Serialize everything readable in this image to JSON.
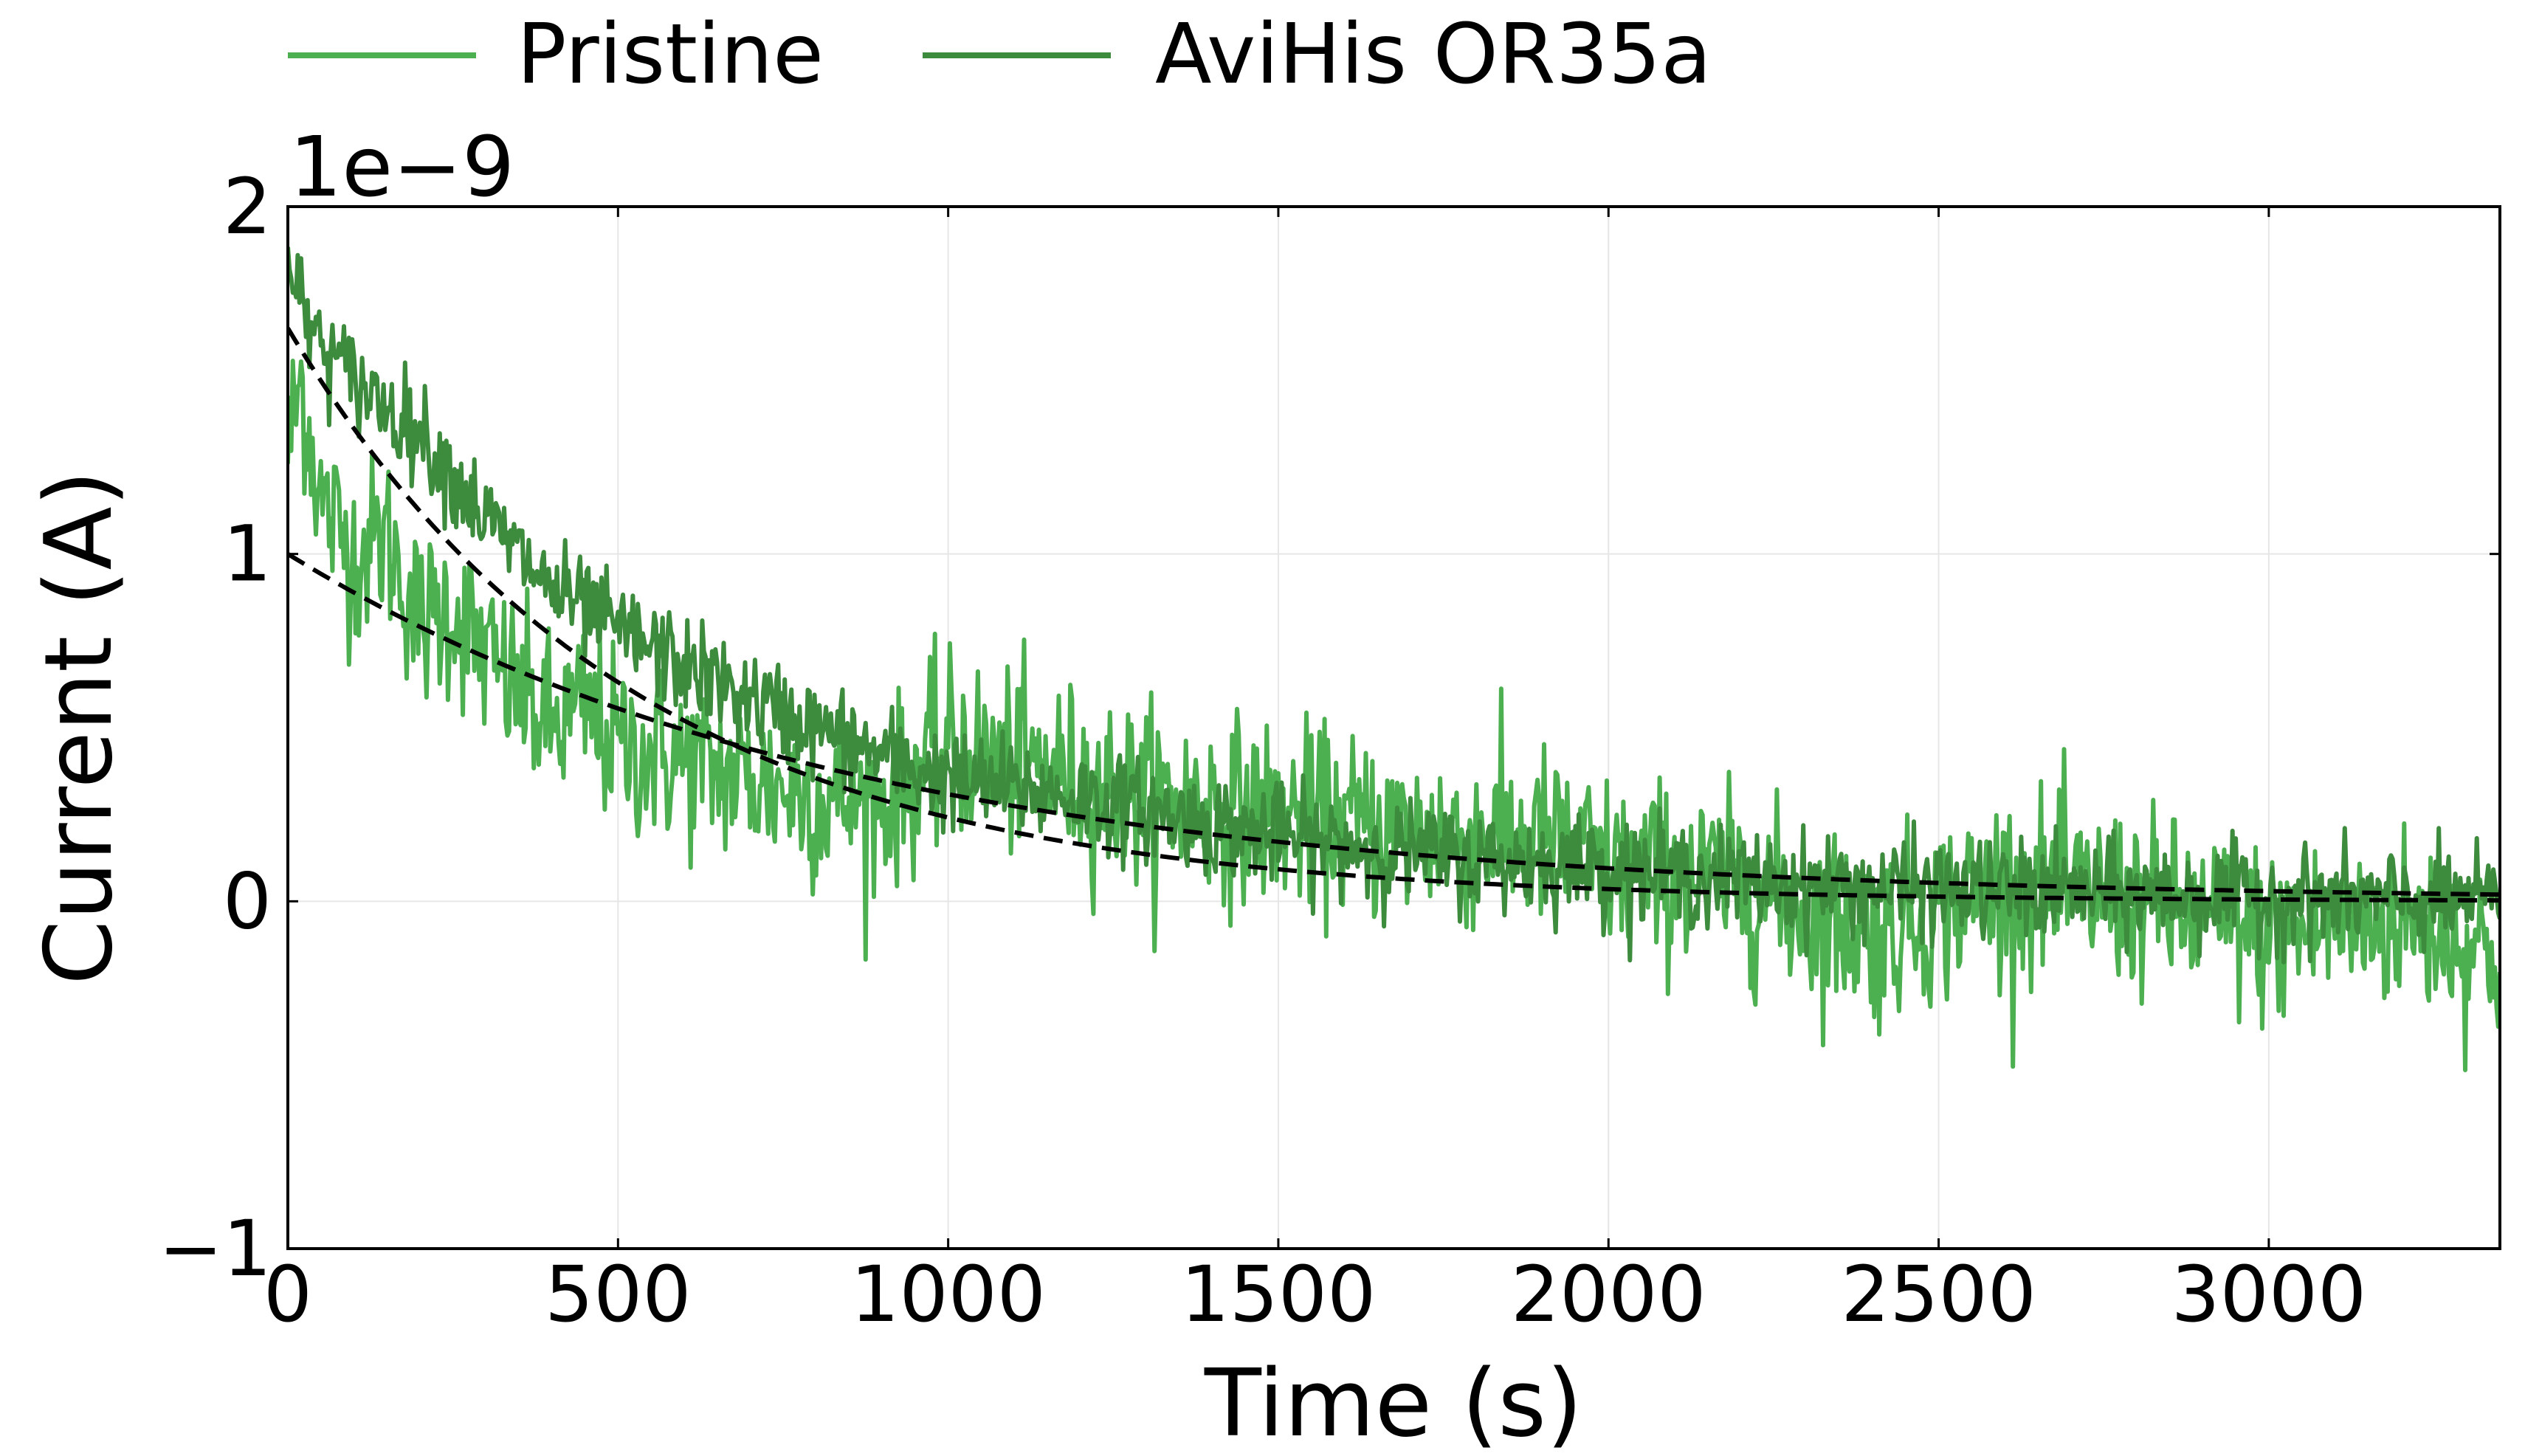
{
  "chart_data": {
    "type": "line",
    "title": "",
    "xlabel": "Time (s)",
    "ylabel": "Current (A)",
    "y_offset_text": "1e−9",
    "xlim": [
      0,
      3350
    ],
    "ylim": [
      -1,
      2
    ],
    "y_scale_factor": 1e-09,
    "x_ticks": [
      0,
      500,
      1000,
      1500,
      2000,
      2500,
      3000
    ],
    "x_tick_labels": [
      "0",
      "500",
      "1000",
      "1500",
      "2000",
      "2500",
      "3000"
    ],
    "y_ticks": [
      -1,
      0,
      1,
      2
    ],
    "y_tick_labels": [
      "−1",
      "0",
      "1",
      "2"
    ],
    "grid": true,
    "legend_placement": "top, above plot",
    "series": [
      {
        "name": "Pristine",
        "color": "#4caf50",
        "fit": {
          "amplitude": 1.0,
          "tau": 850,
          "color": "#000000",
          "style": "dashed"
        },
        "samples": [
          [
            0,
            1.3
          ],
          [
            20,
            1.5
          ],
          [
            50,
            1.15
          ],
          [
            100,
            1.0
          ],
          [
            150,
            1.05
          ],
          [
            200,
            0.8
          ],
          [
            250,
            0.85
          ],
          [
            300,
            0.7
          ],
          [
            350,
            0.6
          ],
          [
            400,
            0.5
          ],
          [
            450,
            0.55
          ],
          [
            500,
            0.45
          ],
          [
            600,
            0.4
          ],
          [
            700,
            0.35
          ],
          [
            800,
            0.3
          ],
          [
            900,
            0.28
          ],
          [
            1000,
            0.45
          ],
          [
            1100,
            0.4
          ],
          [
            1200,
            0.35
          ],
          [
            1300,
            0.3
          ],
          [
            1400,
            0.28
          ],
          [
            1500,
            0.25
          ],
          [
            1700,
            0.2
          ],
          [
            1900,
            0.18
          ],
          [
            2000,
            0.1
          ],
          [
            2200,
            0.05
          ],
          [
            2400,
            -0.1
          ],
          [
            2600,
            0.05
          ],
          [
            2800,
            0.0
          ],
          [
            3000,
            -0.1
          ],
          [
            3200,
            -0.05
          ],
          [
            3350,
            -0.15
          ]
        ]
      },
      {
        "name": "AviHis OR35a",
        "color": "#3d8b3d",
        "fit": {
          "amplitude": 1.65,
          "tau": 520,
          "color": "#000000",
          "style": "dashed"
        },
        "samples": [
          [
            0,
            1.8
          ],
          [
            50,
            1.6
          ],
          [
            100,
            1.5
          ],
          [
            200,
            1.35
          ],
          [
            300,
            1.1
          ],
          [
            400,
            0.9
          ],
          [
            500,
            0.78
          ],
          [
            600,
            0.68
          ],
          [
            700,
            0.58
          ],
          [
            800,
            0.5
          ],
          [
            900,
            0.42
          ],
          [
            1000,
            0.35
          ],
          [
            1200,
            0.3
          ],
          [
            1400,
            0.22
          ],
          [
            1600,
            0.16
          ],
          [
            1800,
            0.12
          ],
          [
            2000,
            0.1
          ],
          [
            2200,
            0.06
          ],
          [
            2400,
            0.04
          ],
          [
            2600,
            0.03
          ],
          [
            2800,
            0.02
          ],
          [
            3000,
            0.01
          ],
          [
            3350,
            0.0
          ]
        ]
      }
    ]
  }
}
